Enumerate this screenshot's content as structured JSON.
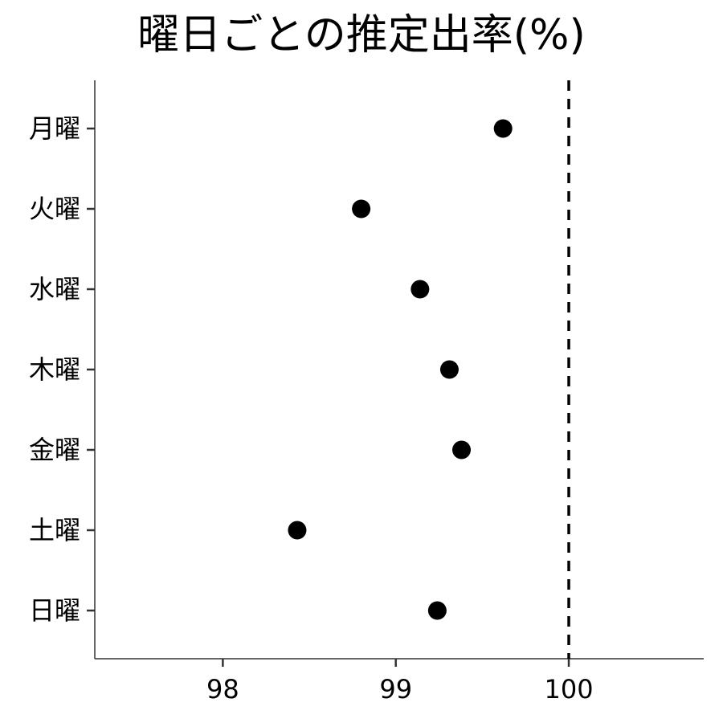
{
  "chart_data": {
    "type": "scatter",
    "title": "曜日ごとの推定出率(%)",
    "xlabel": "",
    "ylabel": "",
    "categories": [
      "月曜",
      "火曜",
      "水曜",
      "木曜",
      "金曜",
      "土曜",
      "日曜"
    ],
    "values": [
      99.62,
      98.8,
      99.14,
      99.31,
      99.38,
      98.43,
      99.24
    ],
    "xlim": [
      97.26,
      100.78
    ],
    "xticks": [
      98,
      99,
      100
    ],
    "xtick_labels": [
      "98",
      "99",
      "100"
    ],
    "reference_line": {
      "x": 100,
      "style": "dashed"
    },
    "grid": false,
    "legend": "none",
    "colors": {
      "point": "#000000",
      "axis": "#333333",
      "reference": "#000000"
    }
  }
}
